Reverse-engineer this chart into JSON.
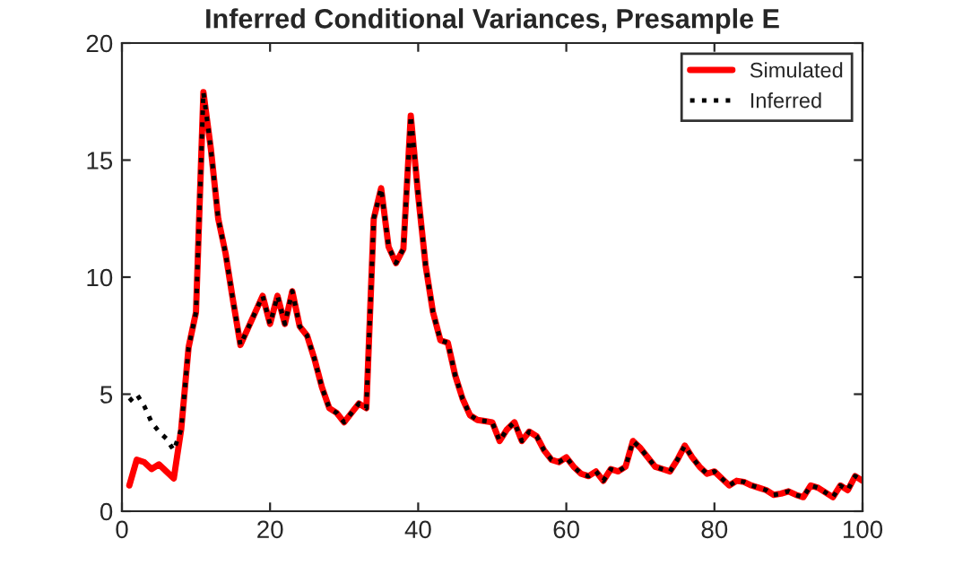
{
  "chart_data": {
    "type": "line",
    "title": "Inferred Conditional Variances, Presample E",
    "x": [
      1,
      2,
      3,
      4,
      5,
      6,
      7,
      8,
      9,
      10,
      11,
      12,
      13,
      14,
      15,
      16,
      17,
      18,
      19,
      20,
      21,
      22,
      23,
      24,
      25,
      26,
      27,
      28,
      29,
      30,
      31,
      32,
      33,
      34,
      35,
      36,
      37,
      38,
      39,
      40,
      41,
      42,
      43,
      44,
      45,
      46,
      47,
      48,
      49,
      50,
      51,
      52,
      53,
      54,
      55,
      56,
      57,
      58,
      59,
      60,
      61,
      62,
      63,
      64,
      65,
      66,
      67,
      68,
      69,
      70,
      71,
      72,
      73,
      74,
      75,
      76,
      77,
      78,
      79,
      80,
      81,
      82,
      83,
      84,
      85,
      86,
      87,
      88,
      89,
      90,
      91,
      92,
      93,
      94,
      95,
      96,
      97,
      98,
      99,
      100
    ],
    "series": [
      {
        "name": "Simulated",
        "color": "#ff0000",
        "line_style": "solid",
        "values": [
          1.1,
          2.2,
          2.1,
          1.8,
          2.0,
          1.7,
          1.4,
          3.5,
          7.0,
          8.5,
          17.9,
          15.5,
          12.5,
          11,
          9,
          7.1,
          7.8,
          8.5,
          9.2,
          8.0,
          9.2,
          8.0,
          9.4,
          7.9,
          7.5,
          6.5,
          5.3,
          4.4,
          4.2,
          3.8,
          4.2,
          4.6,
          4.4,
          12.5,
          13.8,
          11.3,
          10.6,
          11.2,
          16.9,
          13.5,
          10.5,
          8.5,
          7.3,
          7.2,
          5.8,
          4.8,
          4.1,
          3.9,
          3.85,
          3.8,
          3.0,
          3.5,
          3.8,
          3.0,
          3.4,
          3.2,
          2.6,
          2.2,
          2.1,
          2.3,
          1.9,
          1.6,
          1.5,
          1.7,
          1.3,
          1.8,
          1.7,
          1.9,
          3.0,
          2.7,
          2.3,
          1.9,
          1.8,
          1.7,
          2.2,
          2.8,
          2.3,
          1.9,
          1.6,
          1.7,
          1.4,
          1.1,
          1.3,
          1.25,
          1.1,
          1.0,
          0.9,
          0.7,
          0.75,
          0.85,
          0.7,
          0.6,
          1.1,
          1.0,
          0.8,
          0.6,
          1.1,
          0.9,
          1.5,
          1.3
        ]
      },
      {
        "name": "Inferred",
        "color": "#000000",
        "line_style": "dotted",
        "values": [
          4.7,
          5.0,
          4.5,
          3.8,
          3.4,
          3.1,
          2.6,
          3.5,
          7.0,
          8.5,
          17.9,
          15.5,
          12.5,
          11,
          9,
          7.1,
          7.8,
          8.5,
          9.2,
          8.0,
          9.2,
          8.0,
          9.4,
          7.9,
          7.5,
          6.5,
          5.3,
          4.4,
          4.2,
          3.8,
          4.2,
          4.6,
          4.4,
          12.5,
          13.8,
          11.3,
          10.6,
          11.2,
          16.9,
          13.5,
          10.5,
          8.5,
          7.3,
          7.2,
          5.8,
          4.8,
          4.1,
          3.9,
          3.85,
          3.8,
          3.0,
          3.5,
          3.8,
          3.0,
          3.4,
          3.2,
          2.6,
          2.2,
          2.1,
          2.3,
          1.9,
          1.6,
          1.5,
          1.7,
          1.3,
          1.8,
          1.7,
          1.9,
          3.0,
          2.7,
          2.3,
          1.9,
          1.8,
          1.7,
          2.2,
          2.8,
          2.3,
          1.9,
          1.6,
          1.7,
          1.4,
          1.1,
          1.3,
          1.25,
          1.1,
          1.0,
          0.9,
          0.7,
          0.75,
          0.85,
          0.7,
          0.6,
          1.1,
          1.0,
          0.8,
          0.6,
          1.1,
          0.9,
          1.5,
          1.3
        ]
      }
    ],
    "xlim": [
      0,
      100
    ],
    "xticks": [
      0,
      20,
      40,
      60,
      80,
      100
    ],
    "ylim": [
      0,
      20
    ],
    "yticks": [
      0,
      5,
      10,
      15,
      20
    ],
    "grid": false,
    "legend": "top right"
  }
}
